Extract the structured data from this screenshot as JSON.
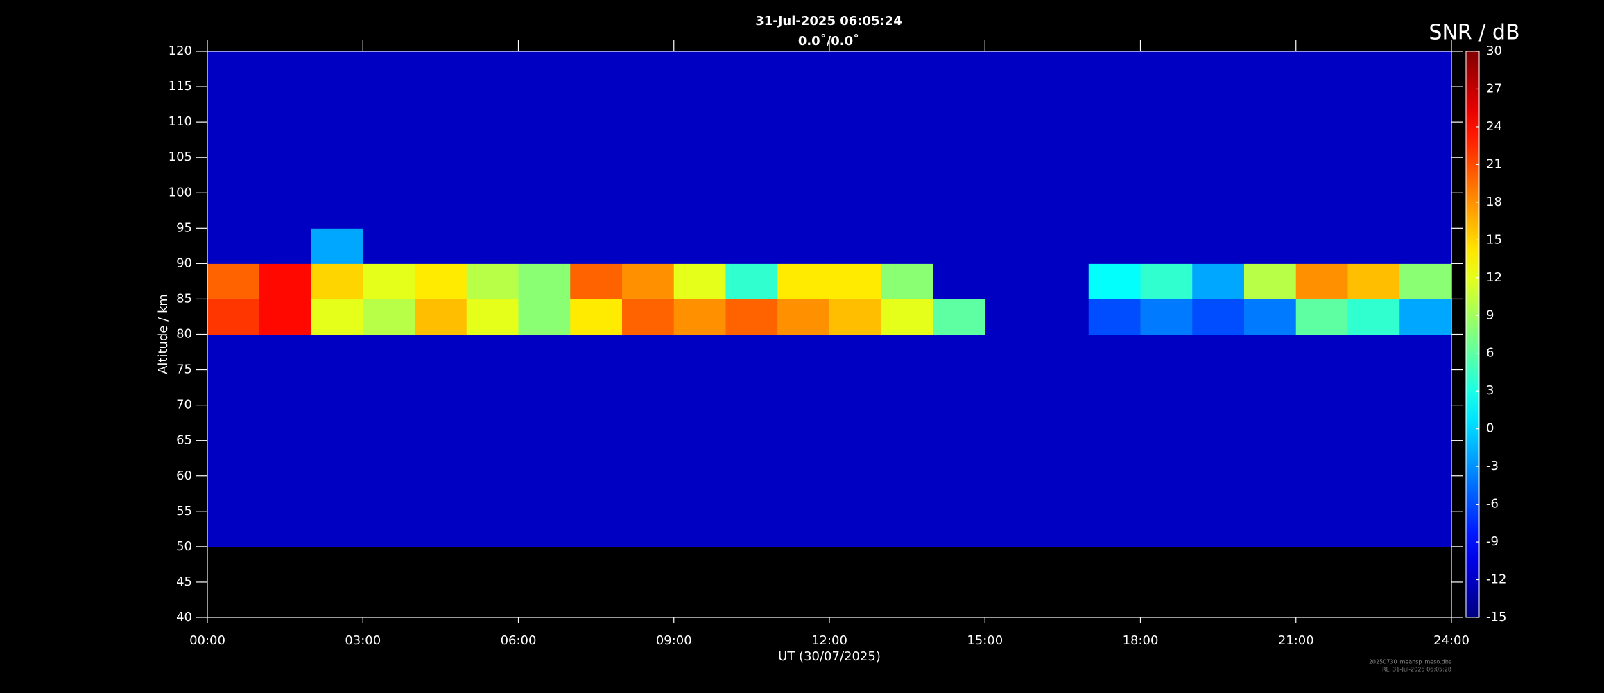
{
  "chart_data": {
    "type": "heatmap",
    "title": "31-Jul-2025 06:05:24",
    "subtitle": "0.0˚/0.0˚",
    "x_label": "UT (30/07/2025)",
    "y_label": "Altitude / km",
    "colorbar_label": "SNR / dB",
    "footer": [
      "20250730_meansp_meso.dbs",
      "RL, 31-Jul-2025 06:05:28"
    ],
    "colormap": "jet",
    "xlim": [
      0,
      24
    ],
    "xticks": [
      {
        "value": 0,
        "label": "00:00"
      },
      {
        "value": 3,
        "label": "03:00"
      },
      {
        "value": 6,
        "label": "06:00"
      },
      {
        "value": 9,
        "label": "09:00"
      },
      {
        "value": 12,
        "label": "12:00"
      },
      {
        "value": 15,
        "label": "15:00"
      },
      {
        "value": 18,
        "label": "18:00"
      },
      {
        "value": 21,
        "label": "21:00"
      },
      {
        "value": 24,
        "label": "24:00"
      }
    ],
    "ylim": [
      40,
      120
    ],
    "yticks": [
      40,
      45,
      50,
      55,
      60,
      65,
      70,
      75,
      80,
      85,
      90,
      95,
      100,
      105,
      110,
      115,
      120
    ],
    "clim": [
      -15,
      30
    ],
    "cticks": [
      -15,
      -12,
      -9,
      -6,
      -3,
      0,
      3,
      6,
      9,
      12,
      15,
      18,
      21,
      24,
      27,
      30
    ],
    "time_bins": [
      0,
      1,
      2,
      3,
      4,
      5,
      6,
      7,
      8,
      9,
      10,
      11,
      12,
      13,
      14,
      15,
      16,
      17,
      18,
      19,
      20,
      21,
      22,
      23,
      24
    ],
    "altitude_bins": [
      50,
      55,
      60,
      65,
      70,
      75,
      80,
      85,
      90,
      95,
      100,
      105,
      110,
      115,
      120
    ],
    "snr": [
      [
        -12,
        -12,
        -12,
        -12,
        -12,
        -12,
        -12,
        -12,
        -12,
        -12,
        -12,
        -12,
        -12,
        -12,
        -12,
        -12,
        -12,
        -12,
        -12,
        -12,
        -12,
        -12,
        -12,
        -12
      ],
      [
        -12,
        -12,
        -12,
        -12,
        -12,
        -12,
        -12,
        -12,
        -12,
        -12,
        -12,
        -12,
        -12,
        -12,
        -12,
        -12,
        -12,
        -12,
        -12,
        -12,
        -12,
        -12,
        -12,
        -12
      ],
      [
        -12,
        -12,
        -12,
        -12,
        -12,
        -12,
        -12,
        -12,
        -12,
        -12,
        -12,
        -12,
        -12,
        -12,
        -12,
        -12,
        -12,
        -12,
        -12,
        -12,
        -12,
        -12,
        -12,
        -12
      ],
      [
        -12,
        -12,
        -12,
        -12,
        -12,
        -12,
        -12,
        -12,
        -12,
        -12,
        -12,
        -12,
        -12,
        -12,
        -12,
        -12,
        -12,
        -12,
        -12,
        -12,
        -12,
        -12,
        -12,
        -12
      ],
      [
        -12,
        -12,
        -12,
        -12,
        -12,
        -12,
        -12,
        -12,
        -12,
        -12,
        -12,
        -12,
        -12,
        -12,
        -12,
        -12,
        -12,
        -12,
        -12,
        -12,
        -12,
        -12,
        -12,
        -12
      ],
      [
        -12,
        -12,
        -12,
        -12,
        -12,
        -12,
        -12,
        -12,
        -12,
        -12,
        -12,
        -12,
        -12,
        -12,
        -12,
        -12,
        -12,
        -12,
        -12,
        -12,
        -12,
        -12,
        -12,
        -12
      ],
      [
        22,
        24,
        12,
        10,
        16,
        12,
        8,
        14,
        20,
        18,
        20,
        18,
        16,
        12,
        6,
        -12,
        -12,
        -6,
        -4,
        -6,
        -4,
        6,
        4,
        -2
      ],
      [
        20,
        24,
        15,
        12,
        14,
        10,
        8,
        20,
        18,
        12,
        4,
        14,
        14,
        8,
        -12,
        -12,
        -12,
        2,
        4,
        -2,
        10,
        18,
        16,
        8
      ],
      [
        -12,
        -12,
        -2,
        -12,
        -12,
        -12,
        -12,
        -12,
        -12,
        -12,
        -12,
        -12,
        -12,
        -12,
        -12,
        -12,
        -12,
        -12,
        -12,
        -12,
        -12,
        -12,
        -12,
        -12
      ],
      [
        -12,
        -12,
        -12,
        -12,
        -12,
        -12,
        -12,
        -12,
        -12,
        -12,
        -12,
        -12,
        -12,
        -12,
        -12,
        -12,
        -12,
        -12,
        -12,
        -12,
        -12,
        -12,
        -12,
        -12
      ],
      [
        -12,
        -12,
        -12,
        -12,
        -12,
        -12,
        -12,
        -12,
        -12,
        -12,
        -12,
        -12,
        -12,
        -12,
        -12,
        -12,
        -12,
        -12,
        -12,
        -12,
        -12,
        -12,
        -12,
        -12
      ],
      [
        -12,
        -12,
        -12,
        -12,
        -12,
        -12,
        -12,
        -12,
        -12,
        -12,
        -12,
        -12,
        -12,
        -12,
        -12,
        -12,
        -12,
        -12,
        -12,
        -12,
        -12,
        -12,
        -12,
        -12
      ],
      [
        -12,
        -12,
        -12,
        -12,
        -12,
        -12,
        -12,
        -12,
        -12,
        -12,
        -12,
        -12,
        -12,
        -12,
        -12,
        -12,
        -12,
        -12,
        -12,
        -12,
        -12,
        -12,
        -12,
        -12
      ],
      [
        -12,
        -12,
        -12,
        -12,
        -12,
        -12,
        -12,
        -12,
        -12,
        -12,
        -12,
        -12,
        -12,
        -12,
        -12,
        -12,
        -12,
        -12,
        -12,
        -12,
        -12,
        -12,
        -12,
        -12
      ]
    ]
  }
}
